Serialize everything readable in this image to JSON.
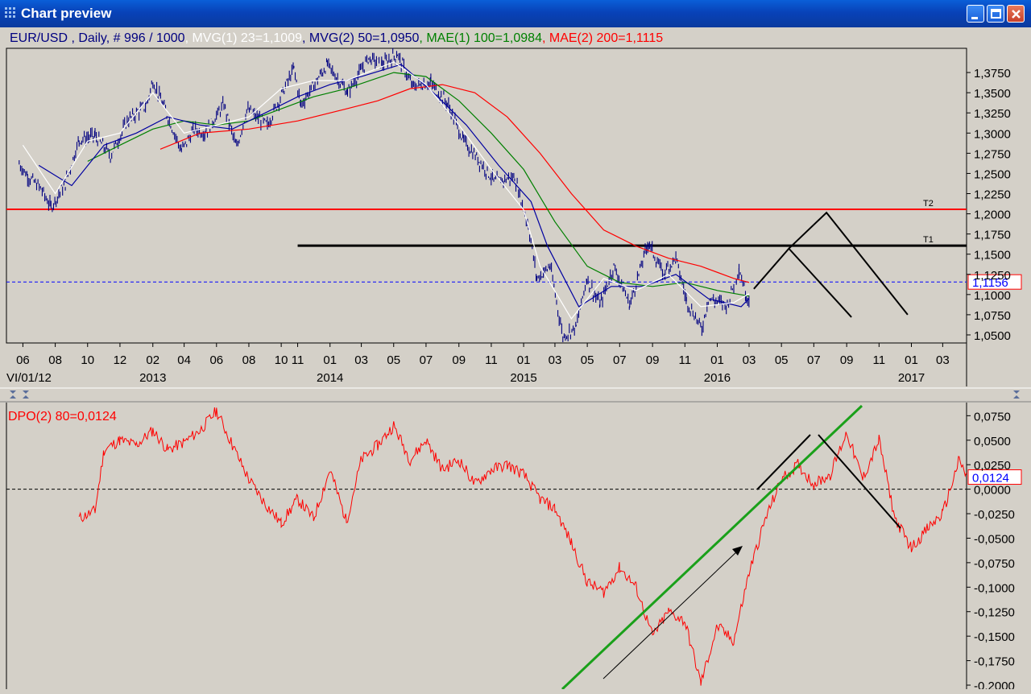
{
  "window": {
    "title": "Chart preview",
    "colors": {
      "title_bg": "#0a4fd0",
      "chart_bg": "#d4d0c8"
    }
  },
  "chart_data": [
    {
      "type": "line",
      "symbol": "EUR/USD",
      "legend": [
        {
          "text": "EUR/USD , Daily, # 996 / 1000",
          "color": "#000080"
        },
        {
          "text": ", MVG(1) 23=1,1009",
          "color": "#ffffff"
        },
        {
          "text": ", MVG(2) 50=1,0950",
          "color": "#000080"
        },
        {
          "text": ", MAE(1) 100=1,0984",
          "color": "#008000"
        },
        {
          "text": ", MAE(2) 200=1,1115",
          "color": "#ff0000"
        }
      ],
      "ylim": [
        1.04,
        1.405
      ],
      "y_ticks": [
        "1,3750",
        "1,3500",
        "1,3250",
        "1,3000",
        "1,2750",
        "1,2500",
        "1,2250",
        "1,2000",
        "1,1750",
        "1,1500",
        "1,1250",
        "1,1000",
        "1,0750",
        "1,0500"
      ],
      "y_tick_values": [
        1.375,
        1.35,
        1.325,
        1.3,
        1.275,
        1.25,
        1.225,
        1.2,
        1.175,
        1.15,
        1.125,
        1.1,
        1.075,
        1.05
      ],
      "x_ticks": [
        "06",
        "08",
        "10",
        "12",
        "02",
        "04",
        "06",
        "08",
        "10",
        "11",
        "01",
        "03",
        "05",
        "07",
        "09",
        "11",
        "01",
        "03",
        "05",
        "07",
        "09",
        "11",
        "01",
        "03",
        "05",
        "07",
        "09",
        "11",
        "01",
        "03"
      ],
      "x_tick_dates": [
        "2012-06",
        "2012-08",
        "2012-10",
        "2012-12",
        "2013-02",
        "2013-04",
        "2013-06",
        "2013-08",
        "2013-10",
        "2013-11",
        "2014-01",
        "2014-03",
        "2014-05",
        "2014-07",
        "2014-09",
        "2014-11",
        "2015-01",
        "2015-03",
        "2015-05",
        "2015-07",
        "2015-09",
        "2015-11",
        "2016-01",
        "2016-03",
        "2016-05",
        "2016-07",
        "2016-09",
        "2016-11",
        "2017-01",
        "2017-03"
      ],
      "x_lim": [
        "2012-05-01",
        "2017-04-15"
      ],
      "years": [
        {
          "label": "VI/01/12",
          "date": "2012-06-01"
        },
        {
          "label": "2013",
          "date": "2013-02-01"
        },
        {
          "label": "2014",
          "date": "2014-01-01"
        },
        {
          "label": "2015",
          "date": "2015-01-01"
        },
        {
          "label": "2016",
          "date": "2016-01-01"
        },
        {
          "label": "2017",
          "date": "2017-01-01"
        }
      ],
      "price_path": [
        [
          "2012-05-25",
          1.262
        ],
        [
          "2012-06-10",
          1.247
        ],
        [
          "2012-07-05",
          1.231
        ],
        [
          "2012-07-24",
          1.208
        ],
        [
          "2012-08-20",
          1.238
        ],
        [
          "2012-09-15",
          1.292
        ],
        [
          "2012-10-15",
          1.297
        ],
        [
          "2012-11-13",
          1.272
        ],
        [
          "2012-12-15",
          1.315
        ],
        [
          "2013-01-20",
          1.335
        ],
        [
          "2013-02-01",
          1.365
        ],
        [
          "2013-02-20",
          1.335
        ],
        [
          "2013-03-27",
          1.278
        ],
        [
          "2013-04-20",
          1.305
        ],
        [
          "2013-05-10",
          1.3
        ],
        [
          "2013-06-15",
          1.335
        ],
        [
          "2013-07-09",
          1.281
        ],
        [
          "2013-07-28",
          1.329
        ],
        [
          "2013-09-05",
          1.31
        ],
        [
          "2013-10-25",
          1.38
        ],
        [
          "2013-11-07",
          1.335
        ],
        [
          "2013-12-27",
          1.385
        ],
        [
          "2014-02-03",
          1.35
        ],
        [
          "2014-03-15",
          1.393
        ],
        [
          "2014-04-10",
          1.385
        ],
        [
          "2014-05-08",
          1.398
        ],
        [
          "2014-06-05",
          1.358
        ],
        [
          "2014-07-10",
          1.362
        ],
        [
          "2014-08-10",
          1.337
        ],
        [
          "2014-09-10",
          1.29
        ],
        [
          "2014-10-10",
          1.265
        ],
        [
          "2014-11-07",
          1.24
        ],
        [
          "2014-12-15",
          1.245
        ],
        [
          "2015-01-10",
          1.185
        ],
        [
          "2015-01-26",
          1.12
        ],
        [
          "2015-02-20",
          1.135
        ],
        [
          "2015-03-16",
          1.048
        ],
        [
          "2015-04-10",
          1.06
        ],
        [
          "2015-04-30",
          1.12
        ],
        [
          "2015-05-25",
          1.087
        ],
        [
          "2015-06-20",
          1.135
        ],
        [
          "2015-07-20",
          1.087
        ],
        [
          "2015-08-24",
          1.165
        ],
        [
          "2015-09-20",
          1.126
        ],
        [
          "2015-10-15",
          1.145
        ],
        [
          "2015-11-04",
          1.093
        ],
        [
          "2015-12-03",
          1.057
        ],
        [
          "2015-12-15",
          1.095
        ],
        [
          "2016-01-20",
          1.087
        ],
        [
          "2016-02-11",
          1.133
        ],
        [
          "2016-02-25",
          1.098
        ],
        [
          "2016-03-01",
          1.095
        ]
      ],
      "mvg23": [
        [
          "2012-06-01",
          1.285
        ],
        [
          "2012-08-01",
          1.225
        ],
        [
          "2012-10-01",
          1.29
        ],
        [
          "2012-12-01",
          1.3
        ],
        [
          "2013-02-01",
          1.35
        ],
        [
          "2013-04-01",
          1.3
        ],
        [
          "2013-06-01",
          1.31
        ],
        [
          "2013-08-01",
          1.32
        ],
        [
          "2013-10-01",
          1.355
        ],
        [
          "2013-12-01",
          1.365
        ],
        [
          "2014-02-01",
          1.365
        ],
        [
          "2014-05-01",
          1.388
        ],
        [
          "2014-07-01",
          1.36
        ],
        [
          "2014-09-01",
          1.31
        ],
        [
          "2014-11-01",
          1.255
        ],
        [
          "2015-01-01",
          1.205
        ],
        [
          "2015-02-01",
          1.135
        ],
        [
          "2015-04-01",
          1.07
        ],
        [
          "2015-06-01",
          1.12
        ],
        [
          "2015-08-01",
          1.105
        ],
        [
          "2015-10-01",
          1.125
        ],
        [
          "2015-12-01",
          1.085
        ],
        [
          "2016-02-01",
          1.09
        ],
        [
          "2016-03-01",
          1.101
        ]
      ],
      "mvg50": [
        [
          "2012-07-01",
          1.26
        ],
        [
          "2012-09-01",
          1.235
        ],
        [
          "2012-11-01",
          1.285
        ],
        [
          "2013-01-01",
          1.3
        ],
        [
          "2013-03-01",
          1.32
        ],
        [
          "2013-05-01",
          1.31
        ],
        [
          "2013-07-01",
          1.305
        ],
        [
          "2013-09-01",
          1.325
        ],
        [
          "2013-11-01",
          1.345
        ],
        [
          "2014-01-01",
          1.36
        ],
        [
          "2014-03-01",
          1.37
        ],
        [
          "2014-05-15",
          1.385
        ],
        [
          "2014-07-15",
          1.35
        ],
        [
          "2014-09-15",
          1.31
        ],
        [
          "2014-11-15",
          1.26
        ],
        [
          "2015-01-15",
          1.215
        ],
        [
          "2015-02-15",
          1.16
        ],
        [
          "2015-04-15",
          1.085
        ],
        [
          "2015-06-15",
          1.11
        ],
        [
          "2015-08-15",
          1.11
        ],
        [
          "2015-10-15",
          1.125
        ],
        [
          "2015-12-15",
          1.095
        ],
        [
          "2016-02-15",
          1.085
        ],
        [
          "2016-03-01",
          1.095
        ]
      ],
      "mae100": [
        [
          "2012-10-01",
          1.265
        ],
        [
          "2012-12-01",
          1.285
        ],
        [
          "2013-02-01",
          1.305
        ],
        [
          "2013-04-01",
          1.315
        ],
        [
          "2013-06-01",
          1.31
        ],
        [
          "2013-08-01",
          1.315
        ],
        [
          "2013-10-01",
          1.33
        ],
        [
          "2013-12-01",
          1.345
        ],
        [
          "2014-02-01",
          1.355
        ],
        [
          "2014-05-01",
          1.375
        ],
        [
          "2014-07-01",
          1.37
        ],
        [
          "2014-09-01",
          1.34
        ],
        [
          "2014-11-01",
          1.3
        ],
        [
          "2015-01-01",
          1.255
        ],
        [
          "2015-03-01",
          1.19
        ],
        [
          "2015-05-01",
          1.135
        ],
        [
          "2015-07-01",
          1.115
        ],
        [
          "2015-09-01",
          1.11
        ],
        [
          "2015-11-01",
          1.115
        ],
        [
          "2016-01-01",
          1.105
        ],
        [
          "2016-03-01",
          1.098
        ]
      ],
      "mae200": [
        [
          "2013-02-15",
          1.28
        ],
        [
          "2013-05-01",
          1.3
        ],
        [
          "2013-08-01",
          1.305
        ],
        [
          "2013-11-01",
          1.315
        ],
        [
          "2014-02-01",
          1.33
        ],
        [
          "2014-04-01",
          1.34
        ],
        [
          "2014-06-01",
          1.355
        ],
        [
          "2014-08-01",
          1.36
        ],
        [
          "2014-10-01",
          1.35
        ],
        [
          "2014-12-01",
          1.32
        ],
        [
          "2015-02-01",
          1.275
        ],
        [
          "2015-04-01",
          1.225
        ],
        [
          "2015-06-01",
          1.18
        ],
        [
          "2015-08-01",
          1.16
        ],
        [
          "2015-10-01",
          1.145
        ],
        [
          "2015-12-01",
          1.135
        ],
        [
          "2016-02-01",
          1.12
        ],
        [
          "2016-03-01",
          1.115
        ]
      ],
      "hlines": [
        {
          "label": "T2",
          "value": 1.2055,
          "from": "2012-05-01",
          "color": "#ff0000"
        },
        {
          "label": "T1",
          "value": 1.1605,
          "from": "2013-11-01",
          "color": "#000000"
        }
      ],
      "current": {
        "label": "1,1156",
        "value": 1.1156
      },
      "projection": [
        [
          [
            "2016-03-10",
            1.107
          ],
          [
            "2016-05-15",
            1.157
          ],
          [
            "2016-09-10",
            1.072
          ]
        ],
        [
          [
            "2016-05-15",
            1.157
          ],
          [
            "2016-07-25",
            1.2015
          ],
          [
            "2016-12-25",
            1.075
          ]
        ]
      ]
    },
    {
      "type": "line",
      "legend": [
        {
          "text": "DPO(2) 80=0,0124",
          "color": "#ff0000"
        }
      ],
      "ylim": [
        -0.2,
        0.0835
      ],
      "y_ticks": [
        "0,0750",
        "0,0500",
        "0,0250",
        "0,0000",
        "-0,0250",
        "-0,0500",
        "-0,0750",
        "-0,1000",
        "-0,1250",
        "-0,1500",
        "-0,1750",
        "-0,2000"
      ],
      "y_tick_values": [
        0.075,
        0.05,
        0.025,
        0,
        -0.025,
        -0.05,
        -0.075,
        -0.1,
        -0.125,
        -0.15,
        -0.175,
        -0.2
      ],
      "current": {
        "label": "0,0124",
        "value": 0.0124
      },
      "dpo_path": [
        [
          "2012-09-15",
          -0.03
        ],
        [
          "2012-10-15",
          -0.022
        ],
        [
          "2012-11-01",
          0.04
        ],
        [
          "2012-12-01",
          0.05
        ],
        [
          "2013-01-01",
          0.045
        ],
        [
          "2013-02-01",
          0.06
        ],
        [
          "2013-03-01",
          0.04
        ],
        [
          "2013-04-01",
          0.048
        ],
        [
          "2013-05-01",
          0.06
        ],
        [
          "2013-06-01",
          0.08
        ],
        [
          "2013-07-01",
          0.045
        ],
        [
          "2013-08-01",
          0.01
        ],
        [
          "2013-09-01",
          -0.015
        ],
        [
          "2013-10-01",
          -0.035
        ],
        [
          "2013-11-01",
          -0.01
        ],
        [
          "2013-12-01",
          -0.03
        ],
        [
          "2014-01-01",
          0.02
        ],
        [
          "2014-02-01",
          -0.033
        ],
        [
          "2014-03-01",
          0.03
        ],
        [
          "2014-04-01",
          0.045
        ],
        [
          "2014-05-01",
          0.065
        ],
        [
          "2014-06-01",
          0.03
        ],
        [
          "2014-07-01",
          0.05
        ],
        [
          "2014-08-01",
          0.02
        ],
        [
          "2014-09-01",
          0.03
        ],
        [
          "2014-10-01",
          0.005
        ],
        [
          "2014-11-01",
          0.02
        ],
        [
          "2014-12-01",
          0.025
        ],
        [
          "2015-01-01",
          0.015
        ],
        [
          "2015-02-01",
          -0.01
        ],
        [
          "2015-03-01",
          -0.02
        ],
        [
          "2015-04-01",
          -0.055
        ],
        [
          "2015-05-01",
          -0.095
        ],
        [
          "2015-06-01",
          -0.105
        ],
        [
          "2015-07-01",
          -0.08
        ],
        [
          "2015-08-01",
          -0.1
        ],
        [
          "2015-09-01",
          -0.15
        ],
        [
          "2015-10-01",
          -0.125
        ],
        [
          "2015-11-01",
          -0.135
        ],
        [
          "2015-12-01",
          -0.198
        ],
        [
          "2016-01-01",
          -0.14
        ],
        [
          "2016-02-01",
          -0.155
        ],
        [
          "2016-03-01",
          -0.085
        ],
        [
          "2016-04-01",
          -0.03
        ],
        [
          "2016-05-01",
          0.01
        ],
        [
          "2016-06-01",
          0.025
        ],
        [
          "2016-07-01",
          0.005
        ],
        [
          "2016-08-01",
          0.015
        ],
        [
          "2016-09-01",
          0.058
        ],
        [
          "2016-10-01",
          0.01
        ],
        [
          "2016-11-01",
          0.05
        ],
        [
          "2016-12-01",
          -0.03
        ],
        [
          "2017-01-01",
          -0.06
        ],
        [
          "2017-02-01",
          -0.04
        ],
        [
          "2017-03-01",
          -0.025
        ],
        [
          "2017-04-01",
          0.03
        ],
        [
          "2017-04-15",
          0.0124
        ]
      ],
      "note": ""
    }
  ]
}
